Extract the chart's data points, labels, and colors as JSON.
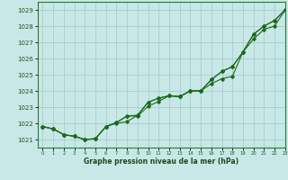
{
  "xlabel": "Graphe pression niveau de la mer (hPa)",
  "background_color": "#c8e8e8",
  "grid_color": "#aacccc",
  "line_color": "#1a6b1a",
  "marker_color": "#1a6b1a",
  "xlim": [
    -0.5,
    23
  ],
  "ylim": [
    1020.5,
    1029.5
  ],
  "yticks": [
    1021,
    1022,
    1023,
    1024,
    1025,
    1026,
    1027,
    1028,
    1029
  ],
  "xticks": [
    0,
    1,
    2,
    3,
    4,
    5,
    6,
    7,
    8,
    9,
    10,
    11,
    12,
    13,
    14,
    15,
    16,
    17,
    18,
    19,
    20,
    21,
    22,
    23
  ],
  "series1": [
    1021.8,
    1021.65,
    1021.3,
    1021.2,
    1021.0,
    1021.05,
    1021.8,
    1022.0,
    1022.1,
    1022.5,
    1023.3,
    1023.55,
    1023.7,
    1023.65,
    1024.0,
    1024.0,
    1024.7,
    1025.2,
    1025.5,
    1026.4,
    1027.5,
    1028.0,
    1028.35,
    1029.0
  ],
  "series2": [
    1021.8,
    1021.65,
    1021.3,
    1021.2,
    1021.0,
    1021.05,
    1021.8,
    1022.05,
    1022.45,
    1022.5,
    1023.3,
    1023.55,
    1023.7,
    1023.65,
    1024.0,
    1024.0,
    1024.7,
    1025.2,
    1025.5,
    1026.4,
    1027.5,
    1028.0,
    1028.35,
    1029.0
  ],
  "series3": [
    1021.8,
    1021.65,
    1021.3,
    1021.2,
    1021.0,
    1021.05,
    1021.8,
    1022.05,
    1022.45,
    1022.45,
    1023.05,
    1023.35,
    1023.7,
    1023.65,
    1024.0,
    1024.0,
    1024.45,
    1024.75,
    1024.9,
    1026.4,
    1027.2,
    1027.8,
    1028.0,
    1029.0
  ]
}
